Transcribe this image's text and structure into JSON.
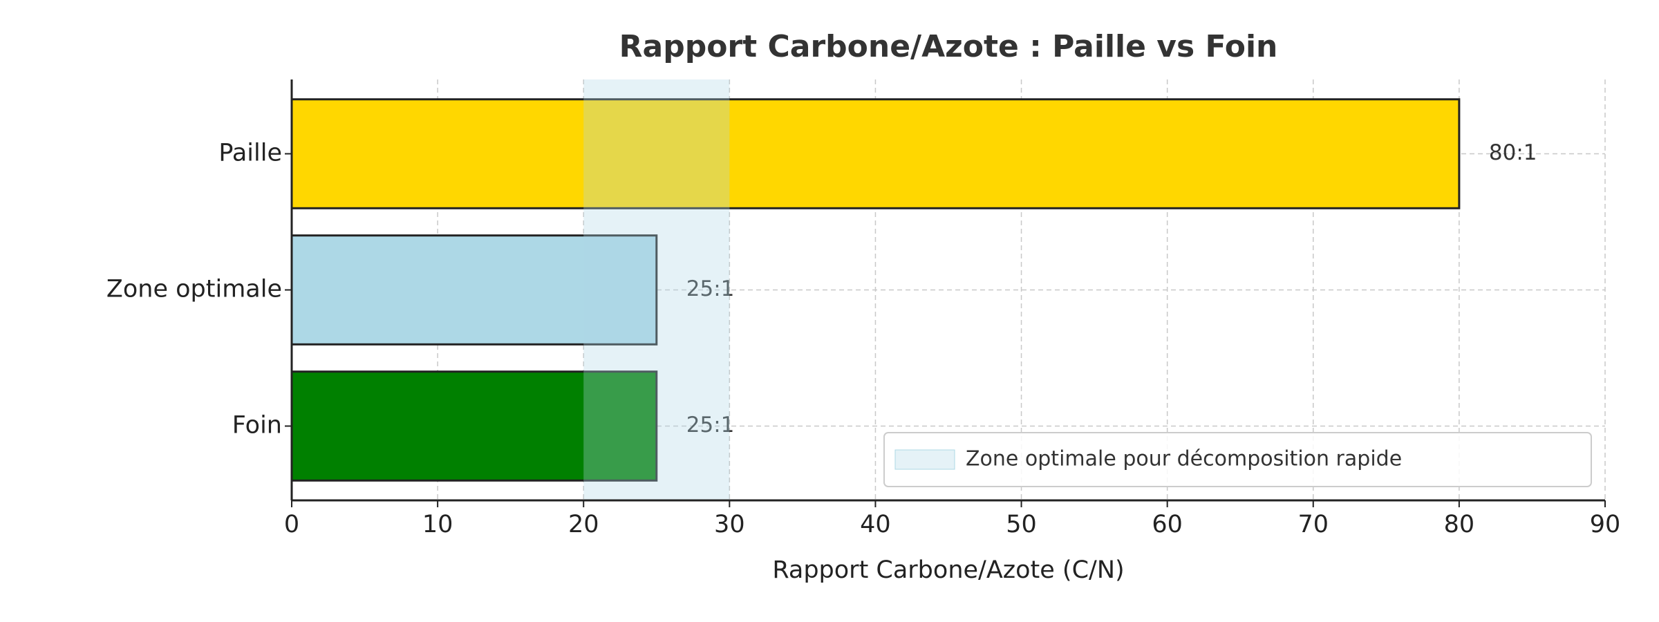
{
  "chart_data": {
    "type": "barh",
    "title": "Rapport Carbone/Azote : Paille vs Foin",
    "xlabel": "Rapport Carbone/Azote (C/N)",
    "categories": [
      "Paille",
      "Zone optimale",
      "Foin"
    ],
    "values": [
      80,
      25,
      25
    ],
    "value_labels": [
      "80:1",
      "25:1",
      "25:1"
    ],
    "colors": [
      "#FFD700",
      "#ADD8E6",
      "#008000"
    ],
    "xlim": [
      0,
      90
    ],
    "xticks": [
      0,
      10,
      20,
      30,
      40,
      50,
      60,
      70,
      80,
      90
    ],
    "grid": true,
    "shaded_span": {
      "range": [
        20,
        30
      ],
      "label": "Zone optimale pour décomposition rapide",
      "color": "#ADD8E6"
    },
    "legend": "lower right"
  }
}
